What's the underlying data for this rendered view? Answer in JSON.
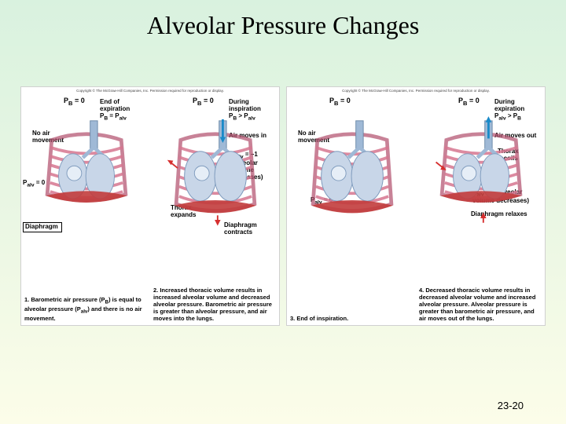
{
  "title": "Alveolar Pressure Changes",
  "page_number": "23-20",
  "copyright_text": "Copyright © The McGraw-Hill Companies, Inc. Permission required for reproduction or display.",
  "colors": {
    "background_gradient_top": "#d9f2df",
    "background_gradient_bottom": "#fcfde9",
    "panel_bg": "#ffffff",
    "ribcage": "#d6768f",
    "ribcage_dark": "#b04d6b",
    "lung_fill": "#c8d6e8",
    "trachea": "#9fb9d6",
    "diaphragm": "#c23c3c",
    "arrow_blue": "#1a8ac9",
    "arrow_red": "#d62f2f",
    "text": "#000000"
  },
  "panels": [
    {
      "id": 1,
      "pb": "P_B = 0",
      "phase_label": "End of expiration\nP_B = P_alv",
      "air_label": "No air\nmovement",
      "palv_text": "P_alv = 0",
      "thorax_label": "",
      "diaphragm_label": "Diaphragm",
      "arrows": "none",
      "lung_scale": 0.92,
      "caption": "1. Barometric air pressure (P_B) is equal to alveolar pressure (P_alv) and there is no air movement."
    },
    {
      "id": 2,
      "pb": "P_B = 0",
      "phase_label": "During\ninspiration\nP_B > P_alv",
      "air_label": "Air moves in",
      "palv_text": "P_alv = −1\n(alveolar\nvolume\nincreases)",
      "thorax_label": "Thorax\nexpands",
      "diaphragm_label": "Diaphragm\ncontracts",
      "arrows": "in",
      "lung_scale": 1.02,
      "caption": "2. Increased thoracic volume results in increased alveolar volume and decreased alveolar pressure. Barometric air pressure is greater than alveolar pressure, and air moves into the lungs."
    },
    {
      "id": 3,
      "pb": "P_B = 0",
      "phase_label": "",
      "air_label": "No air\nmovement",
      "palv_text": "P_alv = 0",
      "thorax_label": "",
      "diaphragm_label": "",
      "arrows": "none",
      "lung_scale": 1.02,
      "caption": "3. End of inspiration."
    },
    {
      "id": 4,
      "pb": "P_B = 0",
      "phase_label": "During expiration\nP_alv > P_B",
      "air_label": "Air moves out",
      "palv_text": "P_alv = 1 (alveolar\nvolume decreases)",
      "thorax_label": "Thorax\nrecoils",
      "diaphragm_label": "Diaphragm relaxes",
      "arrows": "out",
      "lung_scale": 0.92,
      "caption": "4. Decreased thoracic volume results in decreased alveolar volume and increased alveolar pressure. Alveolar pressure is greater than barometric air pressure, and air moves out of the lungs."
    }
  ]
}
